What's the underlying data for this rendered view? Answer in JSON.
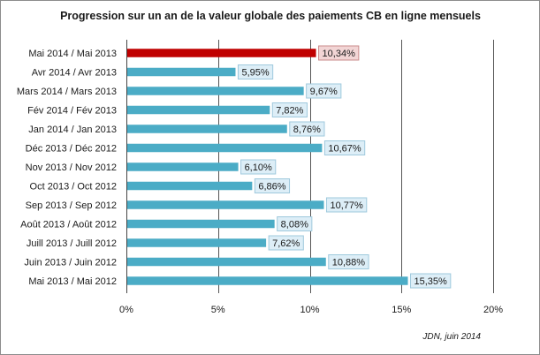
{
  "chart_data": {
    "type": "bar",
    "orientation": "horizontal",
    "title": "Progression sur un an de la valeur globale des paiements CB en ligne mensuels",
    "categories": [
      "Mai 2014 / Mai 2013",
      "Avr 2014 / Avr 2013",
      "Mars 2014 / Mars 2013",
      "Fév 2014 / Fév 2013",
      "Jan 2014 / Jan 2013",
      "Déc 2013 / Déc 2012",
      "Nov 2013 / Nov 2012",
      "Oct 2013 / Oct 2012",
      "Sep 2013 / Sep 2012",
      "Août 2013 / Août 2012",
      "Juill 2013 / Juill 2012",
      "Juin 2013 / Juin 2012",
      "Mai 2013 / Mai 2012"
    ],
    "values": [
      10.34,
      5.95,
      9.67,
      7.82,
      8.76,
      10.67,
      6.1,
      6.86,
      10.77,
      8.08,
      7.62,
      10.88,
      15.35
    ],
    "labels": [
      "10,34%",
      "5,95%",
      "9,67%",
      "7,82%",
      "8,76%",
      "10,67%",
      "6,10%",
      "6,86%",
      "10,77%",
      "8,08%",
      "7,62%",
      "10,88%",
      "15,35%"
    ],
    "highlight_index": 0,
    "xlim": [
      0,
      20
    ],
    "xticks": [
      0,
      5,
      10,
      15,
      20
    ],
    "xtick_labels": [
      "0%",
      "5%",
      "10%",
      "15%",
      "20%"
    ],
    "grid": true,
    "xlabel": "",
    "ylabel": "",
    "colors": {
      "bar": "#4bacc6",
      "bar_highlight": "#c00000",
      "label_bg": "#ddeef7",
      "label_border": "#9fc9dd",
      "label_bg_highlight": "#f2d5d5",
      "label_border_highlight": "#c98a8a",
      "grid": "#555555"
    }
  },
  "source": "JDN, juin 2014"
}
